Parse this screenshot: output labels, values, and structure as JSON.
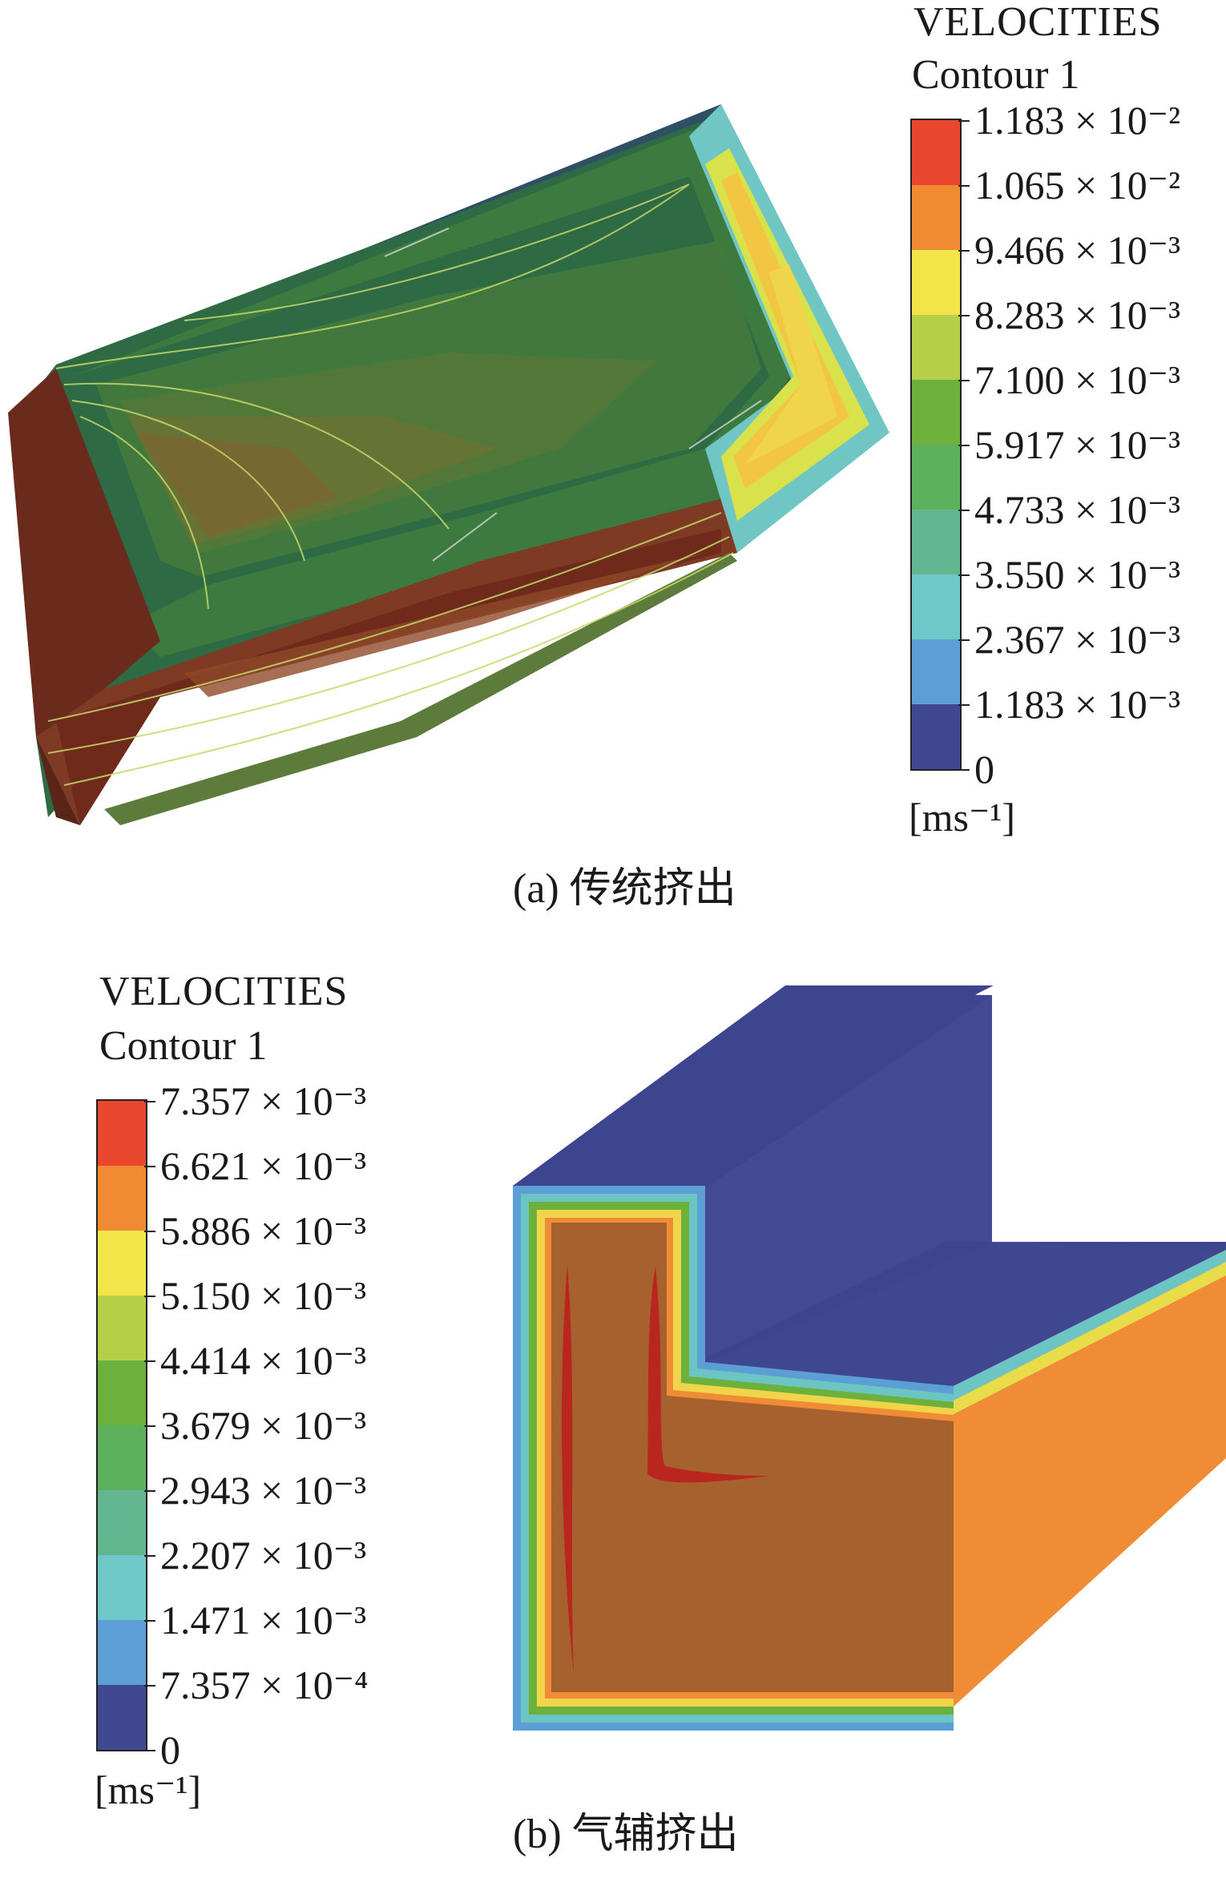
{
  "panel_a": {
    "legend_title": "VELOCITIES",
    "legend_subtitle": "Contour 1",
    "ticks": [
      "1.183 × 10⁻²",
      "1.065 × 10⁻²",
      "9.466 × 10⁻³",
      "8.283 × 10⁻³",
      "7.100 × 10⁻³",
      "5.917 × 10⁻³",
      "4.733 × 10⁻³",
      "3.550 × 10⁻³",
      "2.367 × 10⁻³",
      "1.183 × 10⁻³",
      "0"
    ],
    "unit": "[ms⁻¹]",
    "caption": "(a) 传统挤出"
  },
  "panel_b": {
    "legend_title": "VELOCITIES",
    "legend_subtitle": "Contour 1",
    "ticks": [
      "7.357 × 10⁻³",
      "6.621 × 10⁻³",
      "5.886 × 10⁻³",
      "5.150 × 10⁻³",
      "4.414 × 10⁻³",
      "3.679 × 10⁻³",
      "2.943 × 10⁻³",
      "2.207 × 10⁻³",
      "1.471 × 10⁻³",
      "7.357 × 10⁻⁴",
      "0"
    ],
    "unit": "[ms⁻¹]",
    "caption": "(b) 气辅挤出"
  },
  "colormap": [
    "#e8472e",
    "#f08a33",
    "#f2e549",
    "#b5cf48",
    "#6db13d",
    "#5db05c",
    "#62b790",
    "#6ec8c8",
    "#5b9fd6",
    "#40488f"
  ]
}
